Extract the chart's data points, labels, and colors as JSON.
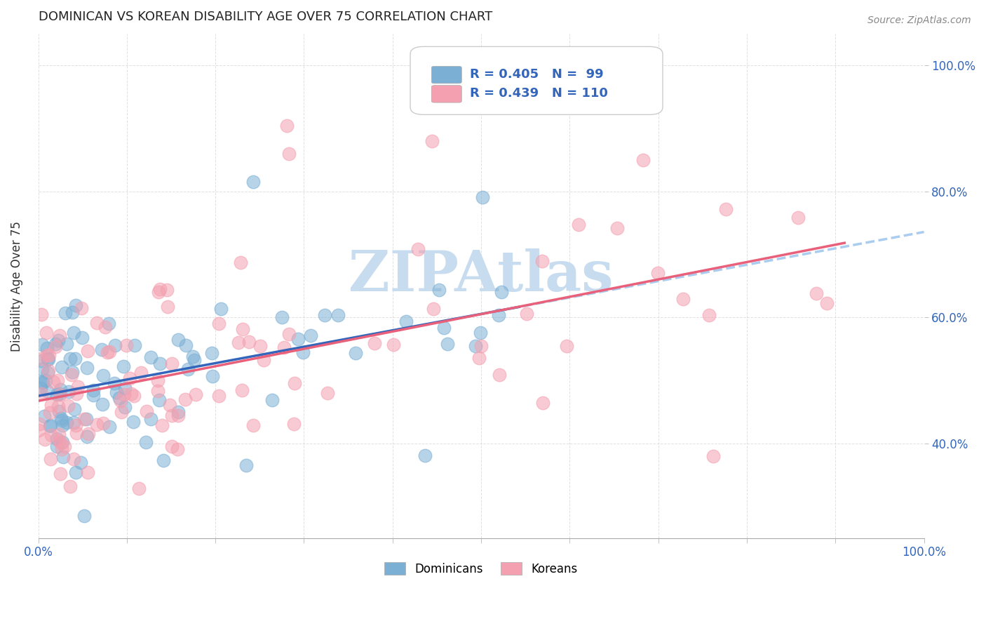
{
  "title": "DOMINICAN VS KOREAN DISABILITY AGE OVER 75 CORRELATION CHART",
  "source": "Source: ZipAtlas.com",
  "ylabel": "Disability Age Over 75",
  "xlim": [
    0.0,
    1.0
  ],
  "ylim": [
    0.25,
    1.05
  ],
  "dominican_R": 0.405,
  "dominican_N": 99,
  "korean_R": 0.439,
  "korean_N": 110,
  "blue_scatter_color": "#7BAFD4",
  "pink_scatter_color": "#F4A0B0",
  "blue_line_color": "#3366BB",
  "pink_line_color": "#E8607A",
  "dashed_line_color": "#AACCEE",
  "watermark_text": "ZIPAtlas",
  "watermark_color": "#C8DCF0",
  "legend_blue_label": "Dominicans",
  "legend_pink_label": "Koreans",
  "background_color": "#FFFFFF",
  "grid_color": "#CCCCCC",
  "title_color": "#222222",
  "axis_label_color": "#3366BB",
  "ylabel_color": "#333333",
  "source_color": "#888888",
  "blue_intercept": 0.488,
  "blue_slope": 0.22,
  "pink_intercept": 0.478,
  "pink_slope": 0.235
}
